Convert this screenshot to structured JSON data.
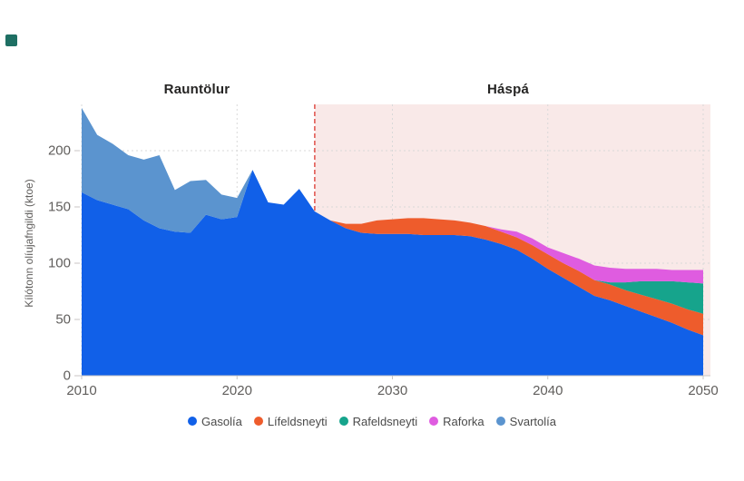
{
  "corner_square": {
    "color": "#1e6f63"
  },
  "chart_data": {
    "type": "area",
    "stacked": true,
    "title": "",
    "ylabel": "Kílótonn olíujafngildi (ktoe)",
    "xlabel": "",
    "ylim": [
      0,
      240
    ],
    "x_ticks": [
      2010,
      2020,
      2030,
      2040,
      2050
    ],
    "y_ticks": [
      0,
      50,
      100,
      150,
      200
    ],
    "grid": true,
    "legend_position": "bottom",
    "annotations": {
      "historical_label": "Rauntölur",
      "forecast_label": "Háspá",
      "forecast_start_year": 2025,
      "forecast_region_color": "#f9e9e8",
      "forecast_line_color": "#e0504a"
    },
    "x": [
      2010,
      2011,
      2012,
      2013,
      2014,
      2015,
      2016,
      2017,
      2018,
      2019,
      2020,
      2021,
      2022,
      2023,
      2024,
      2025,
      2026,
      2027,
      2028,
      2029,
      2030,
      2031,
      2032,
      2033,
      2034,
      2035,
      2036,
      2037,
      2038,
      2039,
      2040,
      2041,
      2042,
      2043,
      2044,
      2045,
      2046,
      2047,
      2048,
      2049,
      2050
    ],
    "series": [
      {
        "name": "Gasolía",
        "color": "#1160e8",
        "values": [
          163,
          156,
          152,
          148,
          138,
          131,
          128,
          127,
          143,
          139,
          141,
          183,
          154,
          152,
          166,
          146,
          138,
          131,
          127,
          126,
          126,
          126,
          125,
          125,
          125,
          124,
          121,
          117,
          112,
          104,
          95,
          87,
          79,
          71,
          67,
          62,
          57,
          52,
          47,
          41,
          36
        ]
      },
      {
        "name": "Lífeldsneyti",
        "color": "#ee5c2c",
        "values": [
          0,
          0,
          0,
          0,
          0,
          0,
          0,
          0,
          0,
          0,
          0,
          0,
          0,
          0,
          0,
          0,
          0,
          4,
          8,
          12,
          13,
          14,
          15,
          14,
          13,
          12,
          12,
          11,
          11,
          12,
          13,
          13,
          14,
          14,
          14,
          14,
          15,
          16,
          17,
          18,
          19
        ]
      },
      {
        "name": "Rafeldsneyti",
        "color": "#16a48c",
        "values": [
          0,
          0,
          0,
          0,
          0,
          0,
          0,
          0,
          0,
          0,
          0,
          0,
          0,
          0,
          0,
          0,
          0,
          0,
          0,
          0,
          0,
          0,
          0,
          0,
          0,
          0,
          0,
          0,
          0,
          0,
          0,
          0,
          0,
          0,
          2,
          7,
          12,
          16,
          20,
          24,
          27
        ]
      },
      {
        "name": "Raforka",
        "color": "#df5ce0",
        "values": [
          0,
          0,
          0,
          0,
          0,
          0,
          0,
          0,
          0,
          0,
          0,
          0,
          0,
          0,
          0,
          0,
          0,
          0,
          0,
          0,
          0,
          0,
          0,
          0,
          0,
          0,
          0,
          2,
          5,
          6,
          6,
          9,
          11,
          13,
          13,
          12,
          11,
          11,
          10,
          11,
          12
        ]
      },
      {
        "name": "Svartolía",
        "color": "#5b94cf",
        "values": [
          75,
          58,
          54,
          48,
          54,
          65,
          37,
          46,
          31,
          22,
          17,
          0,
          0,
          0,
          0,
          0,
          0,
          0,
          0,
          0,
          0,
          0,
          0,
          0,
          0,
          0,
          0,
          0,
          0,
          0,
          0,
          0,
          0,
          0,
          0,
          0,
          0,
          0,
          0,
          0,
          0
        ]
      }
    ]
  }
}
